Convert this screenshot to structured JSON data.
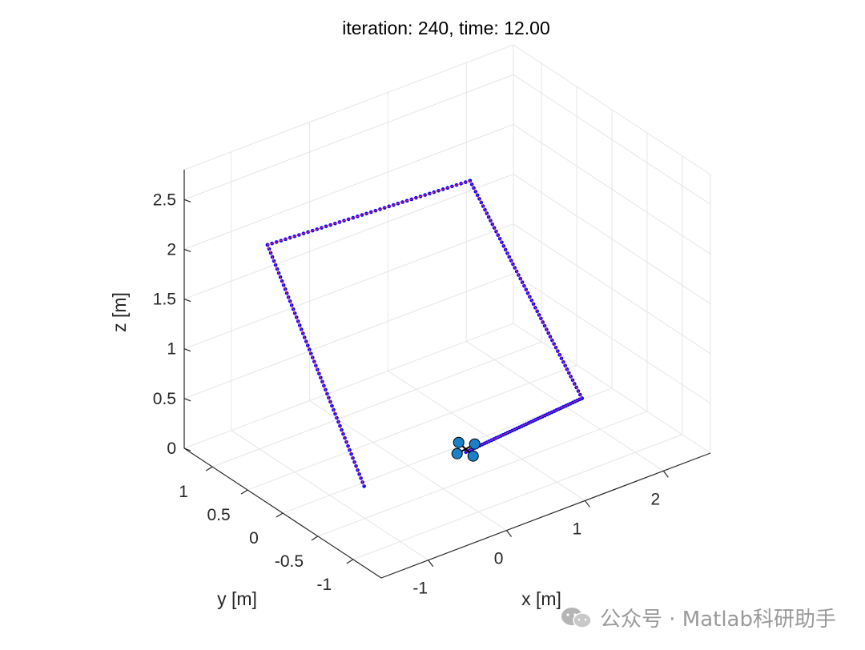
{
  "chart_data": {
    "type": "scatter3d",
    "title": "iteration: 240, time: 12.00",
    "xlabel": "x [m]",
    "ylabel": "y [m]",
    "zlabel": "z [m]",
    "xlim": [
      -1.6,
      2.6
    ],
    "ylim": [
      -1.4,
      1.4
    ],
    "zlim": [
      0,
      2.8
    ],
    "xticks": [
      "-1",
      "0",
      "1",
      "2"
    ],
    "xtick_values": [
      -1,
      0,
      1,
      2
    ],
    "yticks": [
      "-1",
      "-0.5",
      "0",
      "0.5",
      "1"
    ],
    "ytick_values": [
      -1,
      -0.5,
      0,
      0.5,
      1
    ],
    "zticks": [
      "0",
      "0.5",
      "1",
      "1.5",
      "2",
      "2.5"
    ],
    "ztick_values": [
      0,
      0.5,
      1,
      1.5,
      2,
      2.5
    ],
    "grid": true,
    "series": [
      {
        "color": "#0000ff",
        "marker": "dots",
        "waypoints": [
          {
            "x": -1.1,
            "y": -0.6,
            "z": 0.4
          },
          {
            "x": -1.3,
            "y": 0.55,
            "z": 2.35
          },
          {
            "x": 0.7,
            "y": -0.1,
            "z": 2.7
          },
          {
            "x": 1.5,
            "y": -0.8,
            "z": 0.6
          },
          {
            "x": 0.45,
            "y": -0.32,
            "z": 0.15
          }
        ],
        "points_per_segment": [
          60,
          45,
          60,
          50
        ]
      },
      {
        "color": "#ff4060",
        "marker": "line",
        "waypoints": [
          {
            "x": -1.1,
            "y": -0.6,
            "z": 0.4
          },
          {
            "x": -1.3,
            "y": 0.55,
            "z": 2.35
          },
          {
            "x": 0.7,
            "y": -0.1,
            "z": 2.7
          },
          {
            "x": 1.5,
            "y": -0.8,
            "z": 0.6
          },
          {
            "x": 0.45,
            "y": -0.32,
            "z": 0.15
          }
        ]
      }
    ],
    "drone": {
      "position": {
        "x": 0.45,
        "y": -0.32,
        "z": 0.15
      },
      "rotor_color": "#1a80c8"
    }
  },
  "watermark": {
    "text": "公众号 · Matlab科研助手",
    "icon": "wechat-icon"
  }
}
